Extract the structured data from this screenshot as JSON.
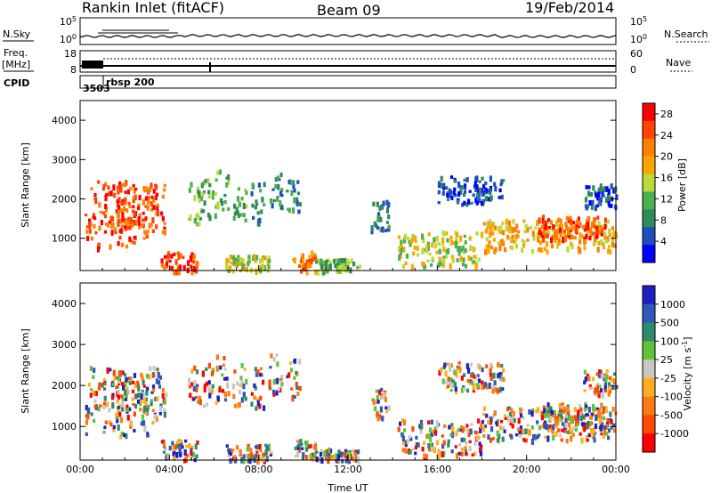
{
  "header": {
    "station": "Rankin Inlet (fitACF)",
    "beam": "Beam 09",
    "date": "19/Feb/2014"
  },
  "noise_panel": {
    "left_label": "N.Sky",
    "right_label": "N.Search",
    "left_ticks": [
      "10^5",
      "10^0"
    ],
    "right_ticks": [
      "10^5",
      "10^0"
    ]
  },
  "freq_panel": {
    "left_label_1": "Freq.",
    "left_label_2": "[MHz]",
    "right_label": "Nave",
    "left_ticks": [
      "18",
      "8"
    ],
    "right_ticks": [
      "60",
      "0"
    ]
  },
  "cpid_panel": {
    "label": "CPID",
    "entries": [
      "3503",
      "rbsp_200"
    ]
  },
  "colors": {
    "power": [
      "#0000ff",
      "#1f4fbf",
      "#2e8b57",
      "#4caf50",
      "#bada3a",
      "#ffa500",
      "#ff7f00",
      "#ff4500",
      "#ff0000"
    ],
    "velocity": [
      "#2020c0",
      "#2f58b8",
      "#2e8b6a",
      "#5ec23a",
      "#c8c8c0",
      "#ffae20",
      "#ff7a10",
      "#ff4a00",
      "#ff0000"
    ]
  },
  "chart_data": [
    {
      "type": "heatmap",
      "quantity": "power",
      "ylabel": "Slant Range [km]",
      "yticks": [
        "1000",
        "2000",
        "3000",
        "4000"
      ],
      "ylim": [
        180,
        4500
      ],
      "xlim": [
        0,
        24
      ],
      "xticks": [
        "00:00",
        "04:00",
        "08:00",
        "12:00",
        "16:00",
        "20:00",
        "00:00"
      ],
      "colorbar_label": "Power [dB]",
      "colorbar_ticks": [
        "4",
        "8",
        "12",
        "16",
        "20",
        "24",
        "28"
      ],
      "colorbar_range": [
        0,
        30
      ]
    },
    {
      "type": "heatmap",
      "quantity": "velocity",
      "ylabel": "Slant Range [km]",
      "yticks": [
        "1000",
        "2000",
        "3000",
        "4000"
      ],
      "ylim": [
        180,
        4500
      ],
      "xlim": [
        0,
        24
      ],
      "xticks": [
        "00:00",
        "04:00",
        "08:00",
        "12:00",
        "16:00",
        "20:00",
        "00:00"
      ],
      "xlabel": "Time UT",
      "colorbar_label": "Velocity [m s^-1]",
      "colorbar_ticks": [
        "1000",
        "500",
        "100",
        "25",
        "-25",
        "-100",
        "-500",
        "-1000"
      ]
    }
  ]
}
